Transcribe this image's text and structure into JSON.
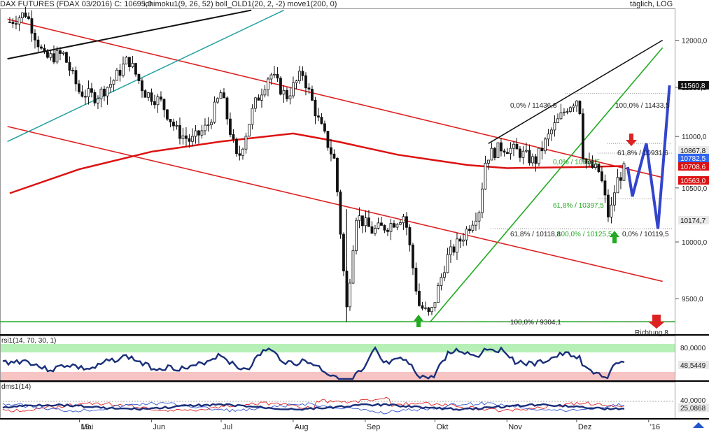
{
  "header": {
    "title": "DAX FUTURES (FDAX 03/2016) C: 10695,0",
    "indicators": "ichimoku1(9, 26, 52)  boll_OLD1(20, 2, -2)  move1(200, 0)",
    "period": "täglich, LOG"
  },
  "chart_data": {
    "type": "candlestick",
    "title": "DAX FUTURES (FDAX 03/2016) C: 10695,0",
    "scale": "log",
    "ylim": [
      9200,
      12350
    ],
    "y_ticks": [
      "12000,0",
      "11500,0",
      "11000,0",
      "10500,0",
      "10000,0",
      "9500,0"
    ],
    "y_tick_values": [
      12000,
      11500,
      11000,
      10500,
      10000,
      9500
    ],
    "x_ticks": [
      "15",
      "Mai",
      "Jun",
      "Jul",
      "Aug",
      "Sep",
      "Okt",
      "Nov",
      "Dez",
      "'16"
    ],
    "price_path": [
      [
        "2015-04-01",
        12200
      ],
      [
        "2015-04-08",
        12300
      ],
      [
        "2015-04-16",
        11800
      ],
      [
        "2015-04-24",
        11850
      ],
      [
        "2015-05-01",
        11450
      ],
      [
        "2015-05-08",
        11400
      ],
      [
        "2015-05-15",
        11550
      ],
      [
        "2015-05-22",
        11800
      ],
      [
        "2015-05-29",
        11450
      ],
      [
        "2015-06-05",
        11350
      ],
      [
        "2015-06-12",
        11050
      ],
      [
        "2015-06-18",
        10950
      ],
      [
        "2015-06-25",
        11100
      ],
      [
        "2015-07-01",
        11450
      ],
      [
        "2015-07-08",
        10750
      ],
      [
        "2015-07-15",
        11300
      ],
      [
        "2015-07-22",
        11650
      ],
      [
        "2015-07-29",
        11400
      ],
      [
        "2015-08-05",
        11650
      ],
      [
        "2015-08-12",
        11150
      ],
      [
        "2015-08-19",
        10750
      ],
      [
        "2015-08-24",
        9400
      ],
      [
        "2015-08-28",
        10250
      ],
      [
        "2015-09-04",
        10100
      ],
      [
        "2015-09-11",
        10150
      ],
      [
        "2015-09-18",
        10250
      ],
      [
        "2015-09-24",
        9450
      ],
      [
        "2015-09-29",
        9350
      ],
      [
        "2015-10-06",
        9850
      ],
      [
        "2015-10-13",
        10050
      ],
      [
        "2015-10-20",
        10300
      ],
      [
        "2015-10-23",
        10800
      ],
      [
        "2015-10-30",
        10900
      ],
      [
        "2015-11-06",
        10850
      ],
      [
        "2015-11-13",
        10750
      ],
      [
        "2015-11-20",
        11050
      ],
      [
        "2015-11-27",
        11300
      ],
      [
        "2015-12-02",
        11400
      ],
      [
        "2015-12-04",
        10750
      ],
      [
        "2015-12-11",
        10650
      ],
      [
        "2015-12-15",
        10200
      ],
      [
        "2015-12-18",
        10550
      ],
      [
        "2015-12-22",
        10695
      ]
    ],
    "sma200": [
      [
        "2015-04-01",
        10450
      ],
      [
        "2015-05-01",
        10680
      ],
      [
        "2015-06-01",
        10850
      ],
      [
        "2015-07-01",
        10950
      ],
      [
        "2015-08-01",
        11030
      ],
      [
        "2015-08-20",
        10950
      ],
      [
        "2015-09-15",
        10820
      ],
      [
        "2015-10-15",
        10720
      ],
      [
        "2015-11-01",
        10690
      ],
      [
        "2015-12-01",
        10700
      ],
      [
        "2015-12-22",
        10710
      ]
    ],
    "annotations": [
      "0,0% / 11436,8",
      "100,0% / 11433,5",
      "61,8% / 10931,6",
      "0,0% / 10835,5",
      "61,8% / 10397,5",
      "61,8% / 10118,8",
      "100,0% / 10125,5",
      "0,0% / 10119,5",
      "100,0% / 9304,1",
      "Richtung 8"
    ],
    "price_labels": [
      "11560,8",
      "10867,8",
      "10782,5",
      "10708,6",
      "10563,0",
      "10174,7"
    ],
    "colors": {
      "candle": "#111111",
      "sma200": "#dd1111",
      "channel": "#dd2222",
      "trend_green": "#22aa22",
      "trend_black": "#111111",
      "trend_teal": "#22a0a0",
      "projection": "#3344cc",
      "arrow_up": "#22aa22",
      "arrow_down": "#dd2222"
    }
  },
  "rsi": {
    "label": "rsi1(14, 70, 30, 1)",
    "levels": [
      "80,0000",
      "48,5449"
    ],
    "value": 48.5449
  },
  "dms": {
    "label": "dms1(14)",
    "levels": [
      "40,0000",
      "25,0868"
    ],
    "value": 25.0868
  }
}
